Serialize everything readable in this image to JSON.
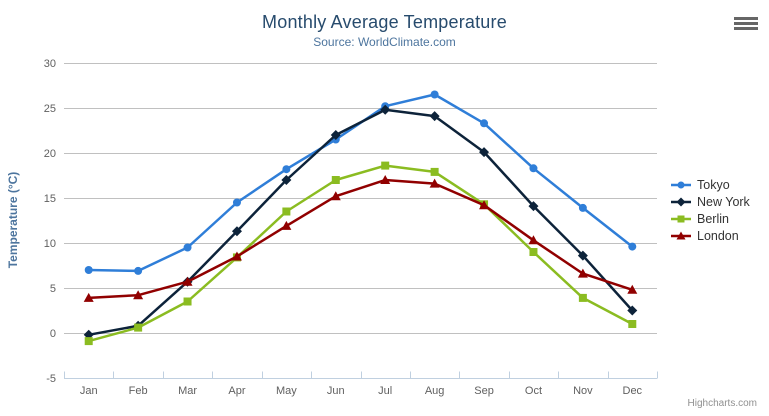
{
  "credit": {
    "label": "Highcharts.com"
  },
  "colors": {
    "title": "#274b6d",
    "subtitle": "#4d759e",
    "axis_title": "#4d759e",
    "axis_labels": "#606060",
    "grid": "#c0c0c0",
    "axis_line": "#c0d0e0",
    "legend_text": "#333333",
    "credit_text": "#909090",
    "background": "#ffffff"
  },
  "chart_data": {
    "type": "line",
    "title": "Monthly Average Temperature",
    "subtitle": "Source: WorldClimate.com",
    "xlabel": "",
    "ylabel": "Temperature (°C)",
    "ylim": [
      -5,
      30
    ],
    "ytick_step": 5,
    "yticks": [
      -5,
      0,
      5,
      10,
      15,
      20,
      25,
      30
    ],
    "grid": true,
    "legend_position": "right",
    "categories": [
      "Jan",
      "Feb",
      "Mar",
      "Apr",
      "May",
      "Jun",
      "Jul",
      "Aug",
      "Sep",
      "Oct",
      "Nov",
      "Dec"
    ],
    "series": [
      {
        "name": "Tokyo",
        "color": "#2f7ed8",
        "symbol": "circle",
        "values": [
          7.0,
          6.9,
          9.5,
          14.5,
          18.2,
          21.5,
          25.2,
          26.5,
          23.3,
          18.3,
          13.9,
          9.6
        ]
      },
      {
        "name": "New York",
        "color": "#0d233a",
        "symbol": "diamond",
        "values": [
          -0.2,
          0.8,
          5.7,
          11.3,
          17.0,
          22.0,
          24.8,
          24.1,
          20.1,
          14.1,
          8.6,
          2.5
        ]
      },
      {
        "name": "Berlin",
        "color": "#8bbc21",
        "symbol": "square",
        "values": [
          -0.9,
          0.6,
          3.5,
          8.4,
          13.5,
          17.0,
          18.6,
          17.9,
          14.3,
          9.0,
          3.9,
          1.0
        ]
      },
      {
        "name": "London",
        "color": "#910000",
        "symbol": "triangle",
        "values": [
          3.9,
          4.2,
          5.7,
          8.5,
          11.9,
          15.2,
          17.0,
          16.6,
          14.2,
          10.3,
          6.6,
          4.8
        ]
      }
    ]
  }
}
